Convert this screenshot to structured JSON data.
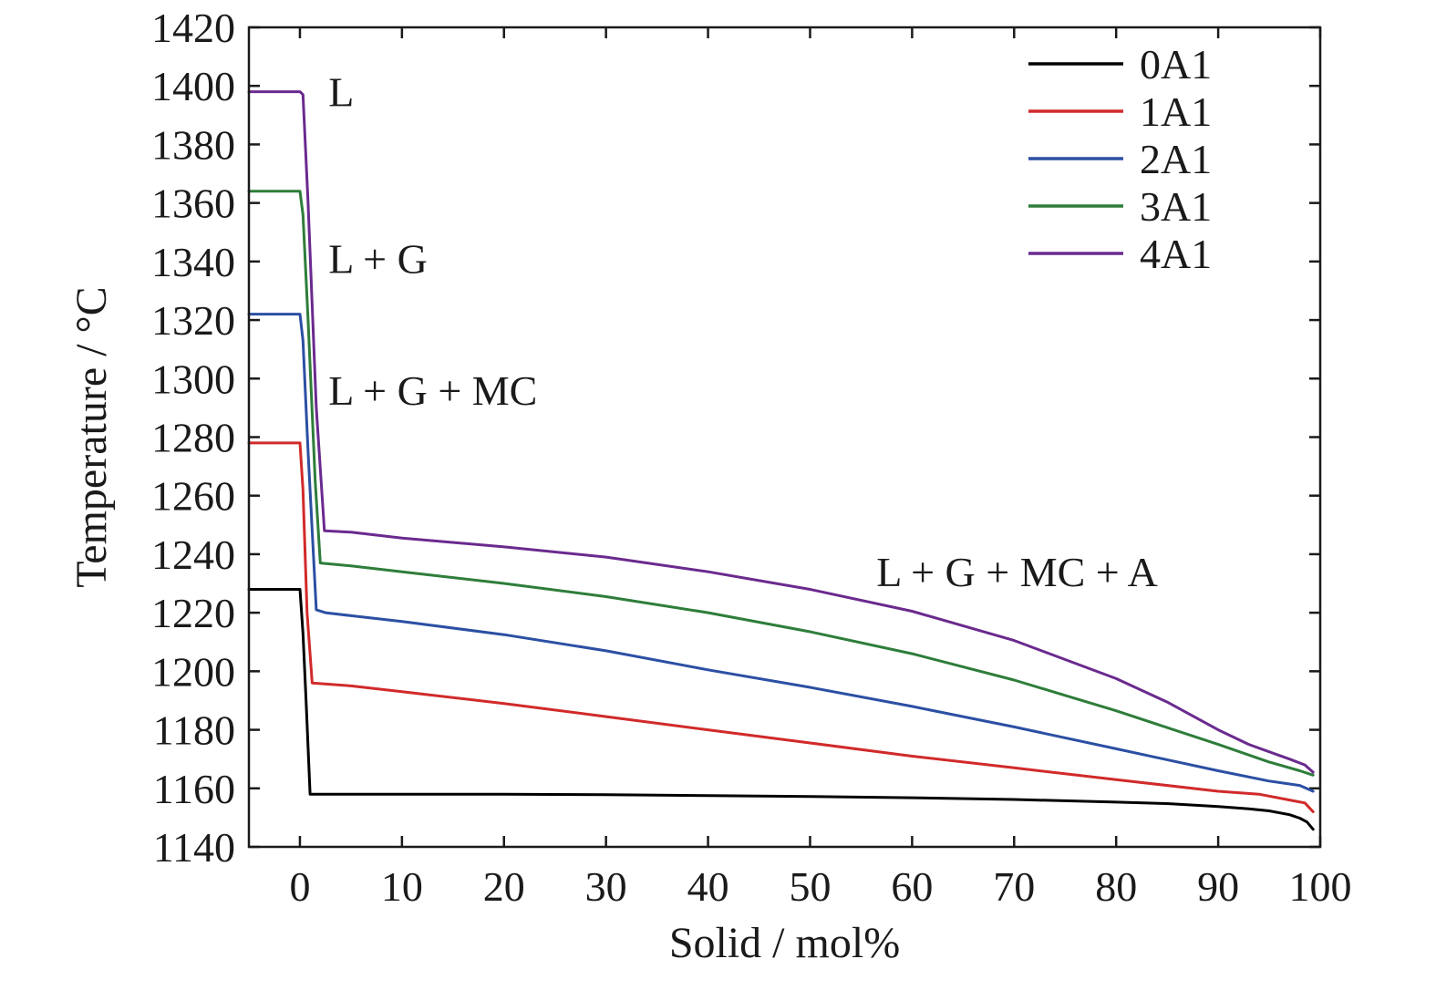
{
  "chart_data": {
    "type": "line",
    "xlabel": "Solid / mol%",
    "ylabel": "Temperature / °C",
    "xlim": [
      -5,
      100
    ],
    "ylim": [
      1140,
      1420
    ],
    "xticks": [
      0,
      10,
      20,
      30,
      40,
      50,
      60,
      70,
      80,
      90,
      100
    ],
    "yticks": [
      1140,
      1160,
      1180,
      1200,
      1220,
      1240,
      1260,
      1280,
      1300,
      1320,
      1340,
      1360,
      1380,
      1400,
      1420
    ],
    "grid": false,
    "legend_position": "top-right",
    "annotations": [
      {
        "text": "L",
        "x": 2.8,
        "y": 1398
      },
      {
        "text": "L + G",
        "x": 2.8,
        "y": 1341
      },
      {
        "text": "L + G + MC",
        "x": 2.8,
        "y": 1296
      },
      {
        "text": "L + G + MC + A",
        "x": 56.5,
        "y": 1234
      }
    ],
    "series": [
      {
        "name": "0A1",
        "color": "#000000",
        "points": [
          [
            -5,
            1228
          ],
          [
            0,
            1228
          ],
          [
            0.3,
            1213
          ],
          [
            0.6,
            1190
          ],
          [
            1.0,
            1158
          ],
          [
            5,
            1158
          ],
          [
            10,
            1158
          ],
          [
            20,
            1158
          ],
          [
            30,
            1157.8
          ],
          [
            40,
            1157.5
          ],
          [
            50,
            1157.2
          ],
          [
            60,
            1156.8
          ],
          [
            70,
            1156.2
          ],
          [
            80,
            1155.3
          ],
          [
            85,
            1154.8
          ],
          [
            90,
            1153.8
          ],
          [
            93,
            1153
          ],
          [
            95,
            1152.3
          ],
          [
            97,
            1151
          ],
          [
            98,
            1149.8
          ],
          [
            98.7,
            1148.5
          ],
          [
            99.3,
            1146
          ]
        ]
      },
      {
        "name": "1A1",
        "color": "#d12a2a",
        "points": [
          [
            -5,
            1278
          ],
          [
            0,
            1278
          ],
          [
            0.3,
            1262
          ],
          [
            0.7,
            1220
          ],
          [
            1.2,
            1196
          ],
          [
            5,
            1195
          ],
          [
            10,
            1193
          ],
          [
            20,
            1189
          ],
          [
            30,
            1184.5
          ],
          [
            40,
            1180
          ],
          [
            50,
            1175.5
          ],
          [
            60,
            1171
          ],
          [
            70,
            1167
          ],
          [
            80,
            1163
          ],
          [
            90,
            1159
          ],
          [
            94,
            1158
          ],
          [
            97,
            1156
          ],
          [
            98.5,
            1155
          ],
          [
            99.3,
            1152
          ]
        ]
      },
      {
        "name": "2A1",
        "color": "#2b4fa3",
        "points": [
          [
            -5,
            1322
          ],
          [
            0,
            1322
          ],
          [
            0.3,
            1313
          ],
          [
            0.8,
            1275
          ],
          [
            1.6,
            1221
          ],
          [
            2.5,
            1220
          ],
          [
            5,
            1219
          ],
          [
            10,
            1217
          ],
          [
            20,
            1212.5
          ],
          [
            30,
            1207
          ],
          [
            40,
            1200.5
          ],
          [
            50,
            1194.5
          ],
          [
            60,
            1188
          ],
          [
            70,
            1181
          ],
          [
            80,
            1173.5
          ],
          [
            90,
            1166
          ],
          [
            95,
            1162.5
          ],
          [
            98,
            1161
          ],
          [
            99.3,
            1159
          ]
        ]
      },
      {
        "name": "3A1",
        "color": "#2e7d3a",
        "points": [
          [
            -5,
            1364
          ],
          [
            0,
            1364
          ],
          [
            0.3,
            1356
          ],
          [
            0.8,
            1320
          ],
          [
            1.5,
            1265
          ],
          [
            2.0,
            1237
          ],
          [
            5,
            1236
          ],
          [
            10,
            1234
          ],
          [
            20,
            1230
          ],
          [
            30,
            1225.5
          ],
          [
            40,
            1220
          ],
          [
            50,
            1213.5
          ],
          [
            60,
            1206
          ],
          [
            70,
            1197
          ],
          [
            80,
            1186.5
          ],
          [
            90,
            1175
          ],
          [
            95,
            1169
          ],
          [
            98,
            1166
          ],
          [
            99.3,
            1164.5
          ]
        ]
      },
      {
        "name": "4A1",
        "color": "#6a2a8e",
        "points": [
          [
            -5,
            1398
          ],
          [
            0,
            1398
          ],
          [
            0.3,
            1397
          ],
          [
            0.8,
            1360
          ],
          [
            1.6,
            1290
          ],
          [
            2.4,
            1248
          ],
          [
            5,
            1247.5
          ],
          [
            10,
            1245.5
          ],
          [
            20,
            1242.5
          ],
          [
            30,
            1239
          ],
          [
            40,
            1234
          ],
          [
            50,
            1228
          ],
          [
            60,
            1220.5
          ],
          [
            70,
            1210.5
          ],
          [
            80,
            1197.5
          ],
          [
            85,
            1189.5
          ],
          [
            90,
            1180
          ],
          [
            93,
            1175
          ],
          [
            95,
            1172.5
          ],
          [
            97,
            1170
          ],
          [
            98.5,
            1168
          ],
          [
            99.3,
            1165.5
          ]
        ]
      }
    ]
  }
}
